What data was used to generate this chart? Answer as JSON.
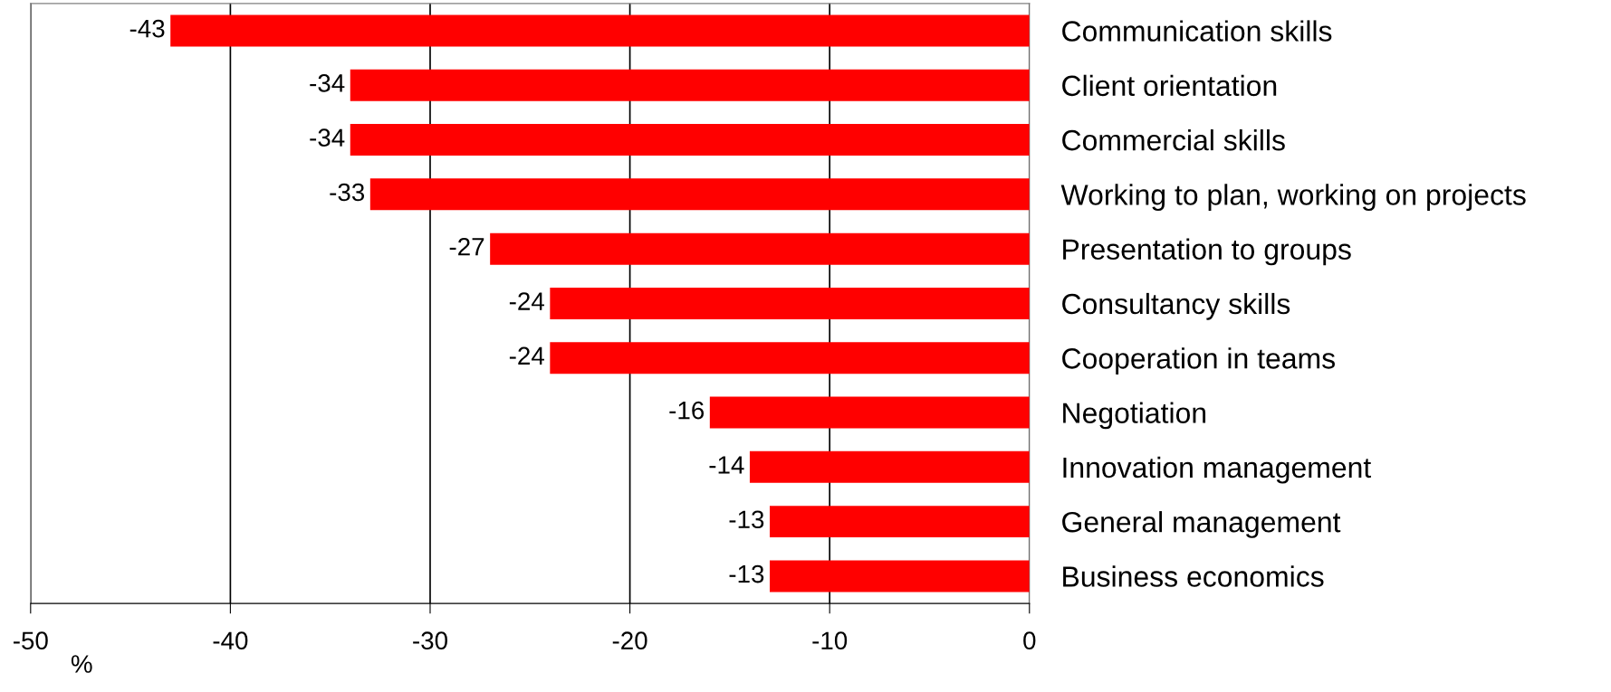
{
  "chart_data": {
    "type": "bar",
    "orientation": "horizontal",
    "xlabel": "%",
    "categories": [
      "Communication skills",
      "Client orientation",
      "Commercial skills",
      "Working to plan, working on projects",
      "Presentation to groups",
      "Consultancy skills",
      "Cooperation in teams",
      "Negotiation",
      "Innovation management",
      "General management",
      "Business economics"
    ],
    "values": [
      -43,
      -34,
      -34,
      -33,
      -27,
      -24,
      -24,
      -16,
      -14,
      -13,
      -13
    ],
    "color": "#ff0000",
    "xlim": [
      -50,
      0
    ],
    "xticks": [
      -50,
      -40,
      -30,
      -20,
      -10,
      0
    ],
    "grid": "x",
    "data_labels": true
  }
}
